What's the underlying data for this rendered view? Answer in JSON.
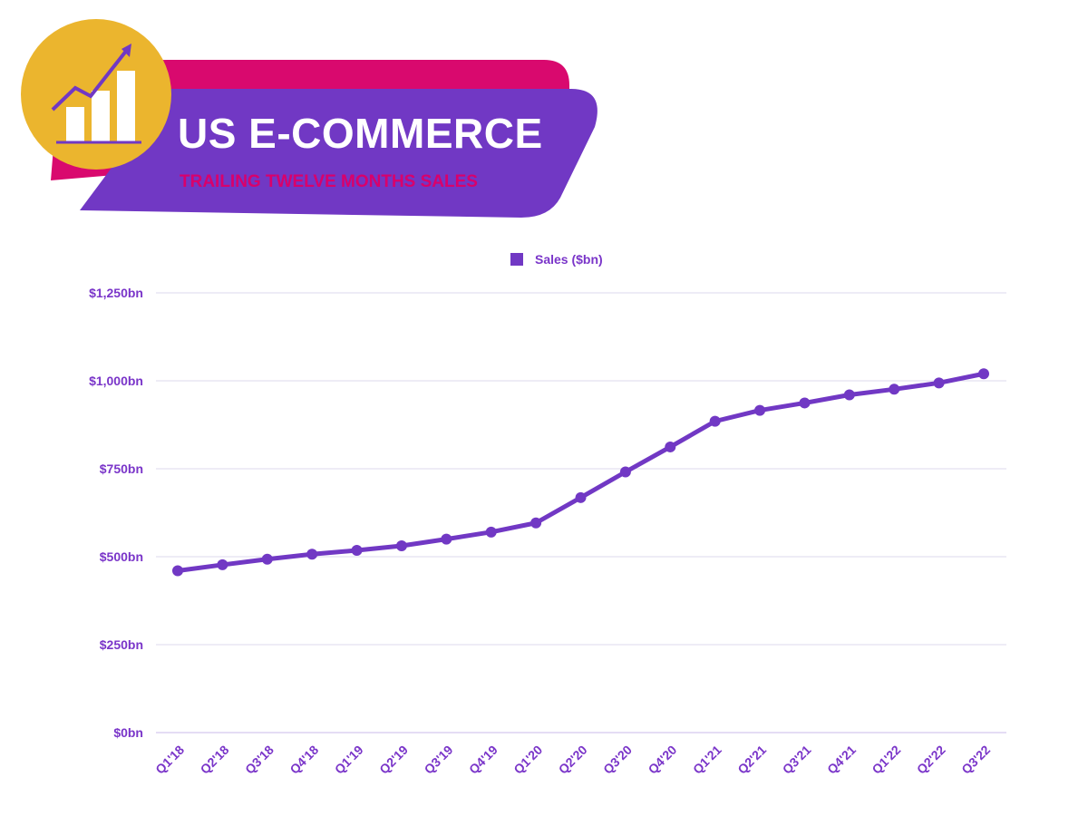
{
  "header": {
    "title": "US E-COMMERCE",
    "subtitle": "TRAILING TWELVE MONTHS SALES",
    "icon": "growth-chart-icon"
  },
  "colors": {
    "accent": "#7138c4",
    "banner_back": "#d9096e",
    "badge": "#ebb52e",
    "grid": "#ddd8ec",
    "text": "#7a35c9"
  },
  "chart_data": {
    "type": "line",
    "legend_position": "top-center",
    "grid": true,
    "categories": [
      "Q1'18",
      "Q2'18",
      "Q3'18",
      "Q4'18",
      "Q1'19",
      "Q2'19",
      "Q3'19",
      "Q4'19",
      "Q1'20",
      "Q2'20",
      "Q3'20",
      "Q4'20",
      "Q1'21",
      "Q2'21",
      "Q3'21",
      "Q4'21",
      "Q1'22",
      "Q2'22",
      "Q3'22"
    ],
    "series": [
      {
        "name": "Sales ($bn)",
        "values": [
          460,
          477,
          493,
          507,
          518,
          531,
          550,
          570,
          596,
          668,
          741,
          812,
          885,
          916,
          937,
          960,
          976,
          994,
          1020
        ]
      }
    ],
    "ylim": [
      0,
      1250
    ],
    "yticks": [
      0,
      250,
      500,
      750,
      1000,
      1250
    ],
    "ytick_labels": [
      "$0bn",
      "$250bn",
      "$500bn",
      "$750bn",
      "$1,000bn",
      "$1,250bn"
    ]
  }
}
